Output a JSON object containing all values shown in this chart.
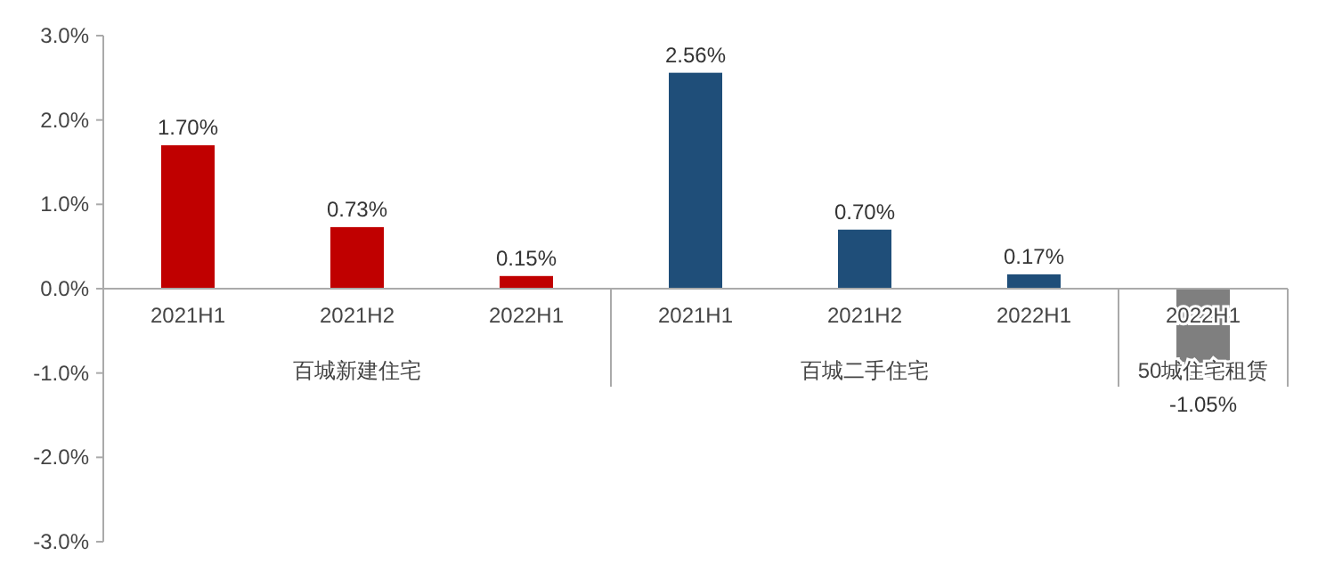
{
  "chart_data": {
    "type": "bar",
    "categories": [
      "2021H1",
      "2021H2",
      "2022H1",
      "2021H1",
      "2021H2",
      "2022H1",
      "2022H1"
    ],
    "series": [
      {
        "color": "#c00000",
        "values": [
          1.7,
          0.73,
          0.15,
          null,
          null,
          null,
          null
        ],
        "value_labels": [
          "1.70%",
          "0.73%",
          "0.15%",
          null,
          null,
          null,
          null
        ]
      },
      {
        "color": "#1f4e79",
        "values": [
          null,
          null,
          null,
          2.56,
          0.7,
          0.17,
          null
        ],
        "value_labels": [
          null,
          null,
          null,
          "2.56%",
          "0.70%",
          "0.17%",
          null
        ]
      },
      {
        "color": "#7f7f7f",
        "values": [
          null,
          null,
          null,
          null,
          null,
          null,
          -1.05
        ],
        "value_labels": [
          null,
          null,
          null,
          null,
          null,
          null,
          "-1.05%"
        ]
      }
    ],
    "annotations": [
      "百城新建住宅",
      "百城二手住宅",
      "50城住宅租赁"
    ],
    "ylim": [
      -3,
      3
    ],
    "yticks": [
      {
        "value": -3,
        "label": "-3.0%"
      },
      {
        "value": -2,
        "label": "-2.0%"
      },
      {
        "value": -1,
        "label": "-1.0%"
      },
      {
        "value": 0,
        "label": "0.0%"
      },
      {
        "value": 1,
        "label": "1.0%"
      },
      {
        "value": 2,
        "label": "2.0%"
      },
      {
        "value": 3,
        "label": "3.0%"
      }
    ],
    "grid": false
  }
}
